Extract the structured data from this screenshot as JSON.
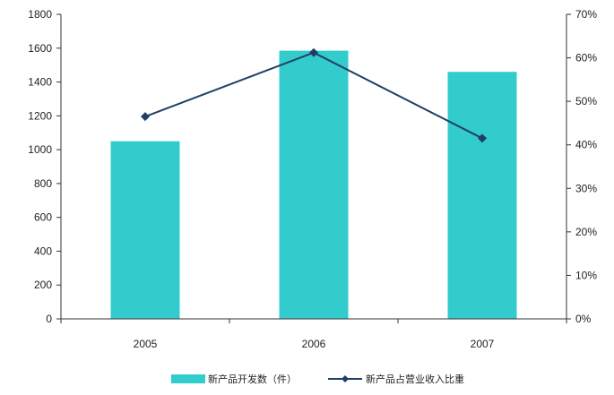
{
  "chart_data": {
    "type": "bar",
    "categories": [
      "2005",
      "2006",
      "2007"
    ],
    "series": [
      {
        "name": "新产品开发数（件）",
        "type": "bar",
        "axis": "left",
        "values": [
          1050,
          1585,
          1460
        ],
        "color": "#33CCCC"
      },
      {
        "name": "新产品占营业收入比重",
        "type": "line",
        "axis": "right",
        "values": [
          46.5,
          61.2,
          41.5
        ],
        "color": "#1F3F66"
      }
    ],
    "y_left": {
      "min": 0,
      "max": 1800,
      "step": 200,
      "ticks": [
        "0",
        "200",
        "400",
        "600",
        "800",
        "1000",
        "1200",
        "1400",
        "1600",
        "1800"
      ]
    },
    "y_right": {
      "min": 0,
      "max": 70,
      "step": 10,
      "ticks": [
        "0%",
        "10%",
        "20%",
        "30%",
        "40%",
        "50%",
        "60%",
        "70%"
      ]
    },
    "grid": false,
    "legend_position": "bottom"
  }
}
